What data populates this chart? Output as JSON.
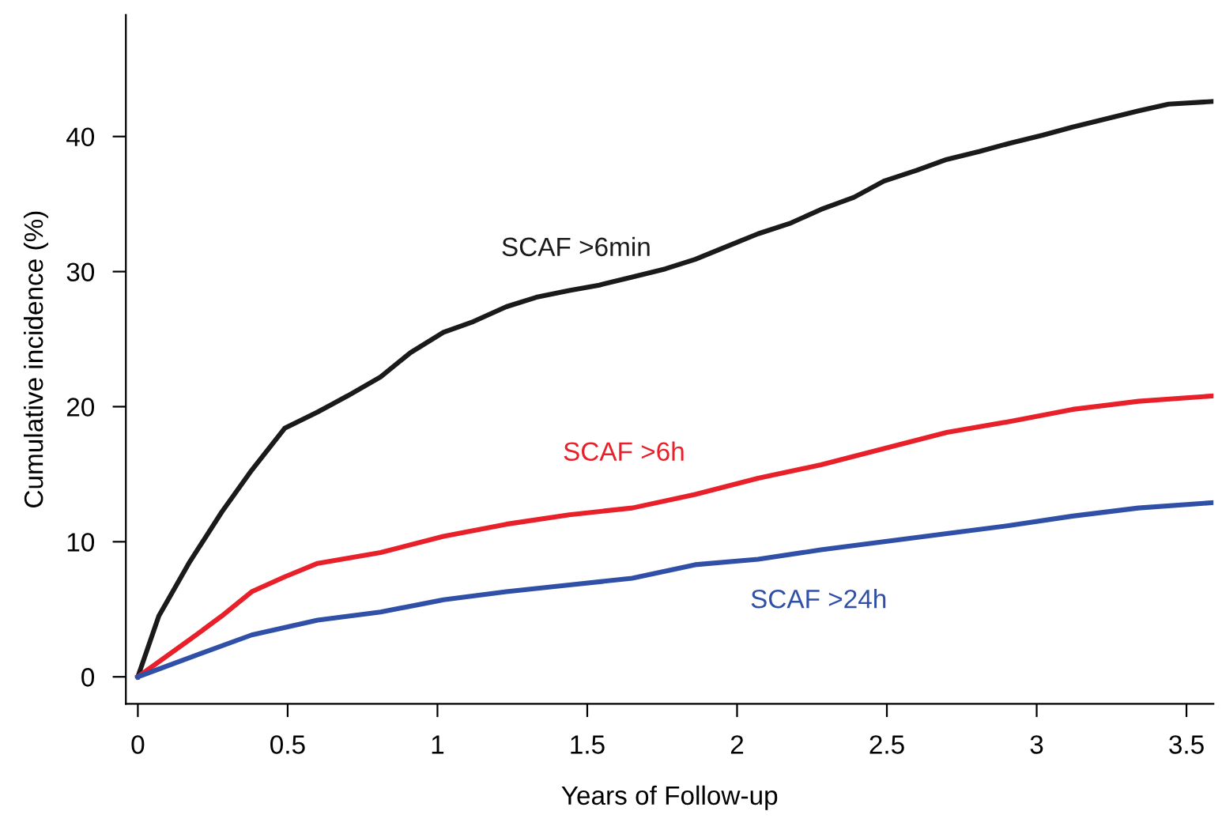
{
  "chart_data": {
    "type": "line",
    "xlabel": "Years of Follow-up",
    "ylabel": "Cumulative incidence (%)",
    "xlim": [
      -0.04,
      3.59
    ],
    "ylim": [
      -2,
      49
    ],
    "xticks": [
      0,
      0.5,
      1,
      1.5,
      2,
      2.5,
      3,
      3.5
    ],
    "yticks": [
      0,
      10,
      20,
      30,
      40
    ],
    "grid": false,
    "legend": false,
    "series": [
      {
        "name": "SCAF >6min",
        "color": "#1a1a1a",
        "x": [
          0,
          0.07,
          0.17,
          0.28,
          0.38,
          0.49,
          0.6,
          0.7,
          0.81,
          0.91,
          1.02,
          1.12,
          1.23,
          1.33,
          1.44,
          1.54,
          1.65,
          1.76,
          1.86,
          1.97,
          2.07,
          2.18,
          2.28,
          2.39,
          2.49,
          2.6,
          2.7,
          2.81,
          2.91,
          3.02,
          3.12,
          3.23,
          3.34,
          3.44,
          3.59
        ],
        "values": [
          0,
          4.5,
          8.4,
          12.2,
          15.3,
          18.4,
          19.6,
          20.8,
          22.2,
          24,
          25.5,
          26.3,
          27.4,
          28.1,
          28.6,
          29,
          29.6,
          30.2,
          30.9,
          31.9,
          32.8,
          33.6,
          34.6,
          35.5,
          36.7,
          37.5,
          38.3,
          38.9,
          39.5,
          40.1,
          40.7,
          41.3,
          41.9,
          42.4,
          42.6
        ]
      },
      {
        "name": "SCAF >6h",
        "color": "#e8202a",
        "x": [
          0,
          0.17,
          0.28,
          0.38,
          0.49,
          0.6,
          0.81,
          1.02,
          1.23,
          1.44,
          1.65,
          1.86,
          2.07,
          2.28,
          2.49,
          2.7,
          2.91,
          3.12,
          3.34,
          3.59
        ],
        "values": [
          0,
          2.7,
          4.5,
          6.3,
          7.4,
          8.4,
          9.2,
          10.4,
          11.3,
          12,
          12.5,
          13.5,
          14.7,
          15.7,
          16.9,
          18.1,
          18.9,
          19.8,
          20.4,
          20.8
        ]
      },
      {
        "name": "SCAF >24h",
        "color": "#3050a8",
        "x": [
          0,
          0.17,
          0.38,
          0.6,
          0.81,
          1.02,
          1.23,
          1.44,
          1.65,
          1.86,
          2.07,
          2.28,
          2.49,
          2.7,
          2.91,
          3.12,
          3.34,
          3.59
        ],
        "values": [
          0,
          1.4,
          3.1,
          4.2,
          4.8,
          5.7,
          6.3,
          6.8,
          7.3,
          8.3,
          8.7,
          9.4,
          10,
          10.6,
          11.2,
          11.9,
          12.5,
          12.9
        ]
      }
    ]
  }
}
